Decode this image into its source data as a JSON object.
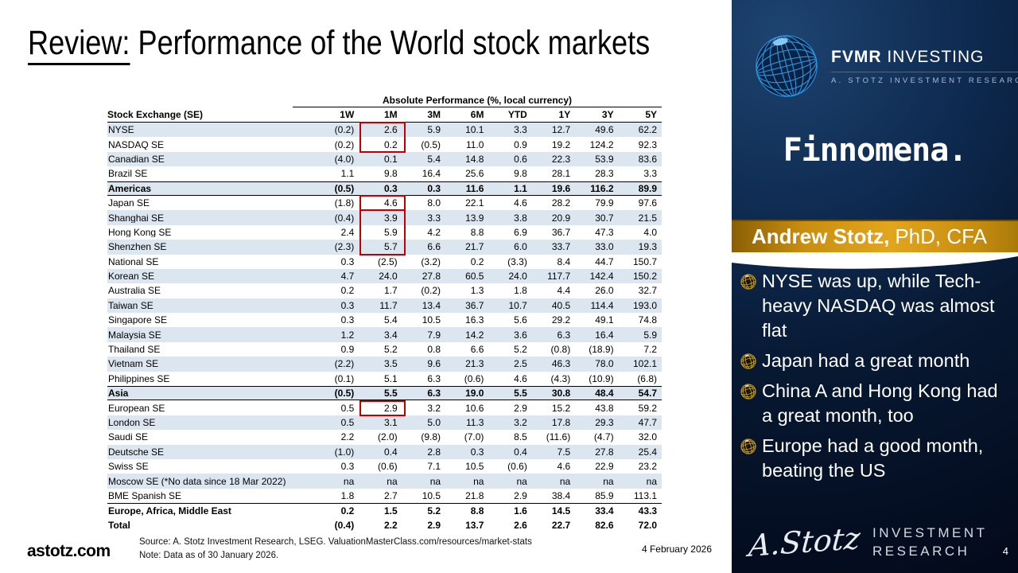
{
  "slide": {
    "title_review": "Review:",
    "title_rest": " Performance of the World stock markets",
    "site": "astotz.com",
    "source_line1": "Source: A. Stotz Investment Research, LSEG. ValuationMasterClass.com/resources/market-stats",
    "source_line2": "Note: Data as of 30 January 2026.",
    "date": "4 February 2026"
  },
  "table": {
    "band_header": "Absolute Performance (%, local currency)",
    "row_header": "Stock Exchange (SE)",
    "columns": [
      "1W",
      "1M",
      "3M",
      "6M",
      "YTD",
      "1Y",
      "3Y",
      "5Y"
    ],
    "stripe_color": "#dce6f1",
    "highlight_color": "#c00000",
    "highlight_column": "1M",
    "rows": [
      {
        "name": "NYSE",
        "values": [
          "(0.2)",
          "2.6",
          "5.9",
          "10.1",
          "3.3",
          "12.7",
          "49.6",
          "62.2"
        ],
        "bold": false,
        "stripe": true,
        "bt": false,
        "bb": false
      },
      {
        "name": "NASDAQ SE",
        "values": [
          "(0.2)",
          "0.2",
          "(0.5)",
          "11.0",
          "0.9",
          "19.2",
          "124.2",
          "92.3"
        ],
        "bold": false,
        "stripe": false,
        "bt": false,
        "bb": false
      },
      {
        "name": "Canadian SE",
        "values": [
          "(4.0)",
          "0.1",
          "5.4",
          "14.8",
          "0.6",
          "22.3",
          "53.9",
          "83.6"
        ],
        "bold": false,
        "stripe": true,
        "bt": false,
        "bb": false
      },
      {
        "name": "Brazil SE",
        "values": [
          "1.1",
          "9.8",
          "16.4",
          "25.6",
          "9.8",
          "28.1",
          "28.3",
          "3.3"
        ],
        "bold": false,
        "stripe": false,
        "bt": false,
        "bb": false
      },
      {
        "name": "Americas",
        "values": [
          "(0.5)",
          "0.3",
          "0.3",
          "11.6",
          "1.1",
          "19.6",
          "116.2",
          "89.9"
        ],
        "bold": true,
        "stripe": true,
        "bt": true,
        "bb": true
      },
      {
        "name": "Japan SE",
        "values": [
          "(1.8)",
          "4.6",
          "8.0",
          "22.1",
          "4.6",
          "28.2",
          "79.9",
          "97.6"
        ],
        "bold": false,
        "stripe": false,
        "bt": false,
        "bb": false
      },
      {
        "name": "Shanghai SE",
        "values": [
          "(0.4)",
          "3.9",
          "3.3",
          "13.9",
          "3.8",
          "20.9",
          "30.7",
          "21.5"
        ],
        "bold": false,
        "stripe": true,
        "bt": false,
        "bb": false
      },
      {
        "name": "Hong Kong SE",
        "values": [
          "2.4",
          "5.9",
          "4.2",
          "8.8",
          "6.9",
          "36.7",
          "47.3",
          "4.0"
        ],
        "bold": false,
        "stripe": false,
        "bt": false,
        "bb": false
      },
      {
        "name": "Shenzhen SE",
        "values": [
          "(2.3)",
          "5.7",
          "6.6",
          "21.7",
          "6.0",
          "33.7",
          "33.0",
          "19.3"
        ],
        "bold": false,
        "stripe": true,
        "bt": false,
        "bb": false
      },
      {
        "name": "National SE",
        "values": [
          "0.3",
          "(2.5)",
          "(3.2)",
          "0.2",
          "(3.3)",
          "8.4",
          "44.7",
          "150.7"
        ],
        "bold": false,
        "stripe": false,
        "bt": false,
        "bb": false
      },
      {
        "name": "Korean SE",
        "values": [
          "4.7",
          "24.0",
          "27.8",
          "60.5",
          "24.0",
          "117.7",
          "142.4",
          "150.2"
        ],
        "bold": false,
        "stripe": true,
        "bt": false,
        "bb": false
      },
      {
        "name": "Australia SE",
        "values": [
          "0.2",
          "1.7",
          "(0.2)",
          "1.3",
          "1.8",
          "4.4",
          "26.0",
          "32.7"
        ],
        "bold": false,
        "stripe": false,
        "bt": false,
        "bb": false
      },
      {
        "name": "Taiwan SE",
        "values": [
          "0.3",
          "11.7",
          "13.4",
          "36.7",
          "10.7",
          "40.5",
          "114.4",
          "193.0"
        ],
        "bold": false,
        "stripe": true,
        "bt": false,
        "bb": false
      },
      {
        "name": "Singapore SE",
        "values": [
          "0.3",
          "5.4",
          "10.5",
          "16.3",
          "5.6",
          "29.2",
          "49.1",
          "74.8"
        ],
        "bold": false,
        "stripe": false,
        "bt": false,
        "bb": false
      },
      {
        "name": "Malaysia SE",
        "values": [
          "1.2",
          "3.4",
          "7.9",
          "14.2",
          "3.6",
          "6.3",
          "16.4",
          "5.9"
        ],
        "bold": false,
        "stripe": true,
        "bt": false,
        "bb": false
      },
      {
        "name": "Thailand SE",
        "values": [
          "0.9",
          "5.2",
          "0.8",
          "6.6",
          "5.2",
          "(0.8)",
          "(18.9)",
          "7.2"
        ],
        "bold": false,
        "stripe": false,
        "bt": false,
        "bb": false
      },
      {
        "name": "Vietnam SE",
        "values": [
          "(2.2)",
          "3.5",
          "9.6",
          "21.3",
          "2.5",
          "46.3",
          "78.0",
          "102.1"
        ],
        "bold": false,
        "stripe": true,
        "bt": false,
        "bb": false
      },
      {
        "name": "Philippines SE",
        "values": [
          "(0.1)",
          "5.1",
          "6.3",
          "(0.6)",
          "4.6",
          "(4.3)",
          "(10.9)",
          "(6.8)"
        ],
        "bold": false,
        "stripe": false,
        "bt": false,
        "bb": false
      },
      {
        "name": "Asia",
        "values": [
          "(0.5)",
          "5.5",
          "6.3",
          "19.0",
          "5.5",
          "30.8",
          "48.4",
          "54.7"
        ],
        "bold": true,
        "stripe": true,
        "bt": true,
        "bb": true
      },
      {
        "name": "European SE",
        "values": [
          "0.5",
          "2.9",
          "3.2",
          "10.6",
          "2.9",
          "15.2",
          "43.8",
          "59.2"
        ],
        "bold": false,
        "stripe": false,
        "bt": false,
        "bb": false
      },
      {
        "name": "London SE",
        "values": [
          "0.5",
          "3.1",
          "5.0",
          "11.3",
          "3.2",
          "17.8",
          "29.3",
          "47.7"
        ],
        "bold": false,
        "stripe": true,
        "bt": false,
        "bb": false
      },
      {
        "name": "Saudi SE",
        "values": [
          "2.2",
          "(2.0)",
          "(9.8)",
          "(7.0)",
          "8.5",
          "(11.6)",
          "(4.7)",
          "32.0"
        ],
        "bold": false,
        "stripe": false,
        "bt": false,
        "bb": false
      },
      {
        "name": "Deutsche SE",
        "values": [
          "(1.0)",
          "0.4",
          "2.8",
          "0.3",
          "0.4",
          "7.5",
          "27.8",
          "25.4"
        ],
        "bold": false,
        "stripe": true,
        "bt": false,
        "bb": false
      },
      {
        "name": "Swiss SE",
        "values": [
          "0.3",
          "(0.6)",
          "7.1",
          "10.5",
          "(0.6)",
          "4.6",
          "22.9",
          "23.2"
        ],
        "bold": false,
        "stripe": false,
        "bt": false,
        "bb": false
      },
      {
        "name": "Moscow SE (*No data since 18 Mar 2022)",
        "values": [
          "na",
          "na",
          "na",
          "na",
          "na",
          "na",
          "na",
          "na"
        ],
        "bold": false,
        "stripe": true,
        "bt": false,
        "bb": false
      },
      {
        "name": "BME Spanish SE",
        "values": [
          "1.8",
          "2.7",
          "10.5",
          "21.8",
          "2.9",
          "38.4",
          "85.9",
          "113.1"
        ],
        "bold": false,
        "stripe": false,
        "bt": false,
        "bb": false
      },
      {
        "name": "Europe, Africa, Middle East",
        "values": [
          "0.2",
          "1.5",
          "5.2",
          "8.8",
          "1.6",
          "14.5",
          "33.4",
          "43.3"
        ],
        "bold": true,
        "stripe": false,
        "bt": true,
        "bb": false
      },
      {
        "name": "Total",
        "values": [
          "(0.4)",
          "2.2",
          "2.9",
          "13.7",
          "2.6",
          "22.7",
          "82.6",
          "72.0"
        ],
        "bold": true,
        "stripe": false,
        "bt": false,
        "bb": false
      }
    ],
    "highlights": [
      {
        "start": "NYSE",
        "end": "NASDAQ SE"
      },
      {
        "start": "Japan SE",
        "end": "Japan SE"
      },
      {
        "start": "Shanghai SE",
        "end": "Shenzhen SE"
      },
      {
        "start": "European SE",
        "end": "European SE"
      }
    ]
  },
  "panel": {
    "brand_fvmr": "FVMR",
    "brand_investing": " INVESTING",
    "brand_subtitle": "A. STOTZ INVESTMENT RESEARCH",
    "brand2": "Finnomena.",
    "banner_bold": "Andrew Stotz,",
    "banner_rest": "PhD, CFA",
    "bullets": [
      "NYSE was up, while Tech-heavy NASDAQ was almost flat",
      "Japan had a great month",
      "China A and Hong Kong had a great month, too",
      "Europe had a good month, beating the US"
    ],
    "signature": "A.Stotz",
    "footer_line1": "INVESTMENT",
    "footer_line2": "RESEARCH",
    "page_number": "4"
  }
}
